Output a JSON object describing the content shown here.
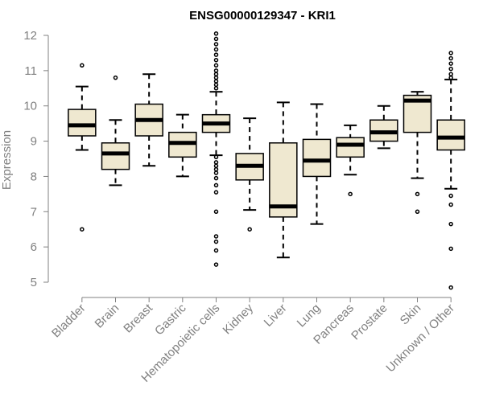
{
  "chart_data": {
    "type": "boxplot",
    "title": "ENSG00000129347 - KRI1",
    "xlabel": "",
    "ylabel": "Expression",
    "ylim": [
      4.8,
      12.1
    ],
    "yticks": [
      5,
      6,
      7,
      8,
      9,
      10,
      11,
      12
    ],
    "box_color": "#efe8d0",
    "outline_color": "#000000",
    "axis_color": "#808080",
    "categories": [
      "Bladder",
      "Brain",
      "Breast",
      "Gastric",
      "Hematopoietic cells",
      "Kidney",
      "Liver",
      "Lung",
      "Pancreas",
      "Prostate",
      "Skin",
      "Unknown / Other"
    ],
    "boxes": [
      {
        "category": "Bladder",
        "whisker_low": 8.75,
        "q1": 9.15,
        "median": 9.45,
        "q3": 9.9,
        "whisker_high": 10.55,
        "outliers": [
          11.15,
          6.5
        ]
      },
      {
        "category": "Brain",
        "whisker_low": 7.75,
        "q1": 8.2,
        "median": 8.65,
        "q3": 8.95,
        "whisker_high": 9.6,
        "outliers": [
          10.8
        ]
      },
      {
        "category": "Breast",
        "whisker_low": 8.3,
        "q1": 9.15,
        "median": 9.6,
        "q3": 10.05,
        "whisker_high": 10.9,
        "outliers": []
      },
      {
        "category": "Gastric",
        "whisker_low": 8.0,
        "q1": 8.55,
        "median": 8.95,
        "q3": 9.25,
        "whisker_high": 9.75,
        "outliers": []
      },
      {
        "category": "Hematopoietic cells",
        "whisker_low": 8.6,
        "q1": 9.25,
        "median": 9.5,
        "q3": 9.75,
        "whisker_high": 10.4,
        "outliers": [
          12.05,
          11.9,
          11.75,
          11.6,
          11.45,
          11.3,
          11.15,
          11.0,
          10.9,
          10.8,
          10.7,
          10.6,
          10.5,
          8.55,
          8.4,
          8.3,
          8.2,
          8.1,
          7.95,
          7.75,
          7.55,
          7.0,
          6.3,
          6.15,
          5.9,
          5.5
        ]
      },
      {
        "category": "Kidney",
        "whisker_low": 7.05,
        "q1": 7.9,
        "median": 8.3,
        "q3": 8.65,
        "whisker_high": 9.65,
        "outliers": [
          6.5
        ]
      },
      {
        "category": "Liver",
        "whisker_low": 5.7,
        "q1": 6.85,
        "median": 7.15,
        "q3": 8.95,
        "whisker_high": 10.1,
        "outliers": []
      },
      {
        "category": "Lung",
        "whisker_low": 6.65,
        "q1": 8.0,
        "median": 8.45,
        "q3": 9.05,
        "whisker_high": 10.05,
        "outliers": []
      },
      {
        "category": "Pancreas",
        "whisker_low": 8.05,
        "q1": 8.55,
        "median": 8.9,
        "q3": 9.1,
        "whisker_high": 9.45,
        "outliers": [
          7.5
        ]
      },
      {
        "category": "Prostate",
        "whisker_low": 8.8,
        "q1": 9.0,
        "median": 9.25,
        "q3": 9.6,
        "whisker_high": 10.0,
        "outliers": []
      },
      {
        "category": "Skin",
        "whisker_low": 7.95,
        "q1": 9.25,
        "median": 10.15,
        "q3": 10.3,
        "whisker_high": 10.4,
        "outliers": [
          7.5,
          7.0
        ]
      },
      {
        "category": "Unknown / Other",
        "whisker_low": 7.65,
        "q1": 8.75,
        "median": 9.1,
        "q3": 9.6,
        "whisker_high": 10.75,
        "outliers": [
          11.5,
          11.35,
          11.2,
          11.05,
          10.9,
          10.8,
          7.45,
          7.2,
          6.65,
          5.95,
          4.85
        ]
      }
    ]
  }
}
